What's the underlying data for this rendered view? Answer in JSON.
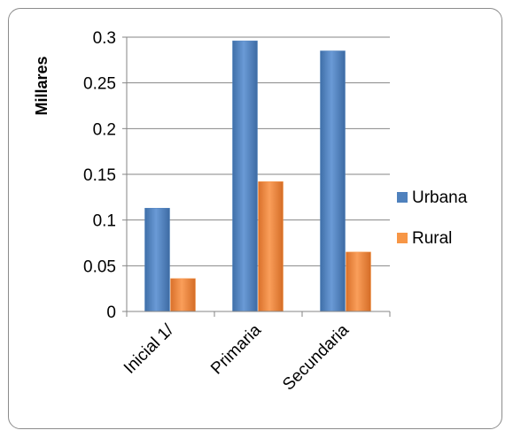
{
  "chart_data": {
    "type": "bar",
    "title": "",
    "xlabel": "",
    "ylabel": "Millares",
    "ylim": [
      0,
      0.3
    ],
    "yticks": [
      0,
      0.05,
      0.1,
      0.15,
      0.2,
      0.25,
      0.3
    ],
    "categories": [
      "Inicial 1/",
      "Primaria",
      "Secundaria"
    ],
    "series": [
      {
        "name": "Urbana",
        "color": "#4f81bd",
        "values": [
          0.113,
          0.296,
          0.285
        ]
      },
      {
        "name": "Rural",
        "color": "#f79646",
        "values": [
          0.036,
          0.142,
          0.065
        ]
      }
    ],
    "grid": true,
    "legend_position": "right"
  }
}
